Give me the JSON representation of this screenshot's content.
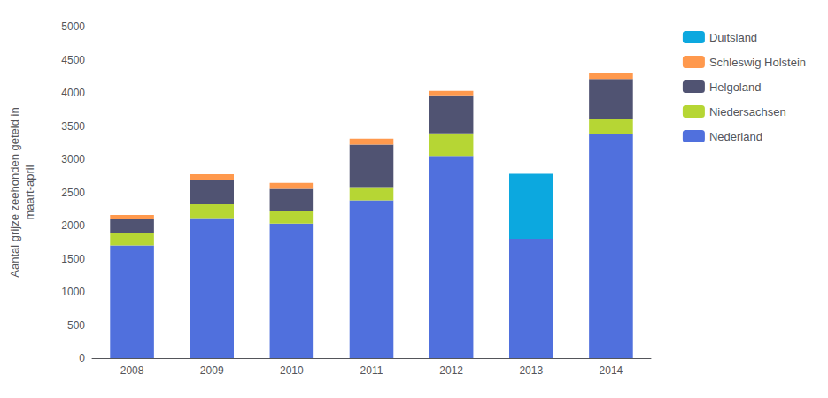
{
  "chart_data": {
    "type": "bar",
    "stacked": true,
    "ylabel": "Aantal grijze zeehonden geteld in\nmaart-april",
    "categories": [
      "2008",
      "2009",
      "2010",
      "2011",
      "2012",
      "2013",
      "2014"
    ],
    "series": [
      {
        "name": "Nederland",
        "values": [
          1700,
          2100,
          2030,
          2380,
          3050,
          1800,
          3380
        ]
      },
      {
        "name": "Niedersachsen",
        "values": [
          185,
          220,
          185,
          200,
          340,
          0,
          220
        ]
      },
      {
        "name": "Helgoland",
        "values": [
          210,
          360,
          340,
          640,
          575,
          0,
          610
        ]
      },
      {
        "name": "Schleswig Holstein",
        "values": [
          65,
          95,
          90,
          90,
          65,
          0,
          90
        ]
      },
      {
        "name": "Duitsland",
        "values": [
          0,
          0,
          0,
          0,
          0,
          980,
          0
        ]
      }
    ],
    "ylim": [
      0,
      5000
    ],
    "yticks": [
      0,
      500,
      1000,
      1500,
      2000,
      2500,
      3000,
      3500,
      4000,
      4500,
      5000
    ],
    "grid": false,
    "legend": "right"
  }
}
